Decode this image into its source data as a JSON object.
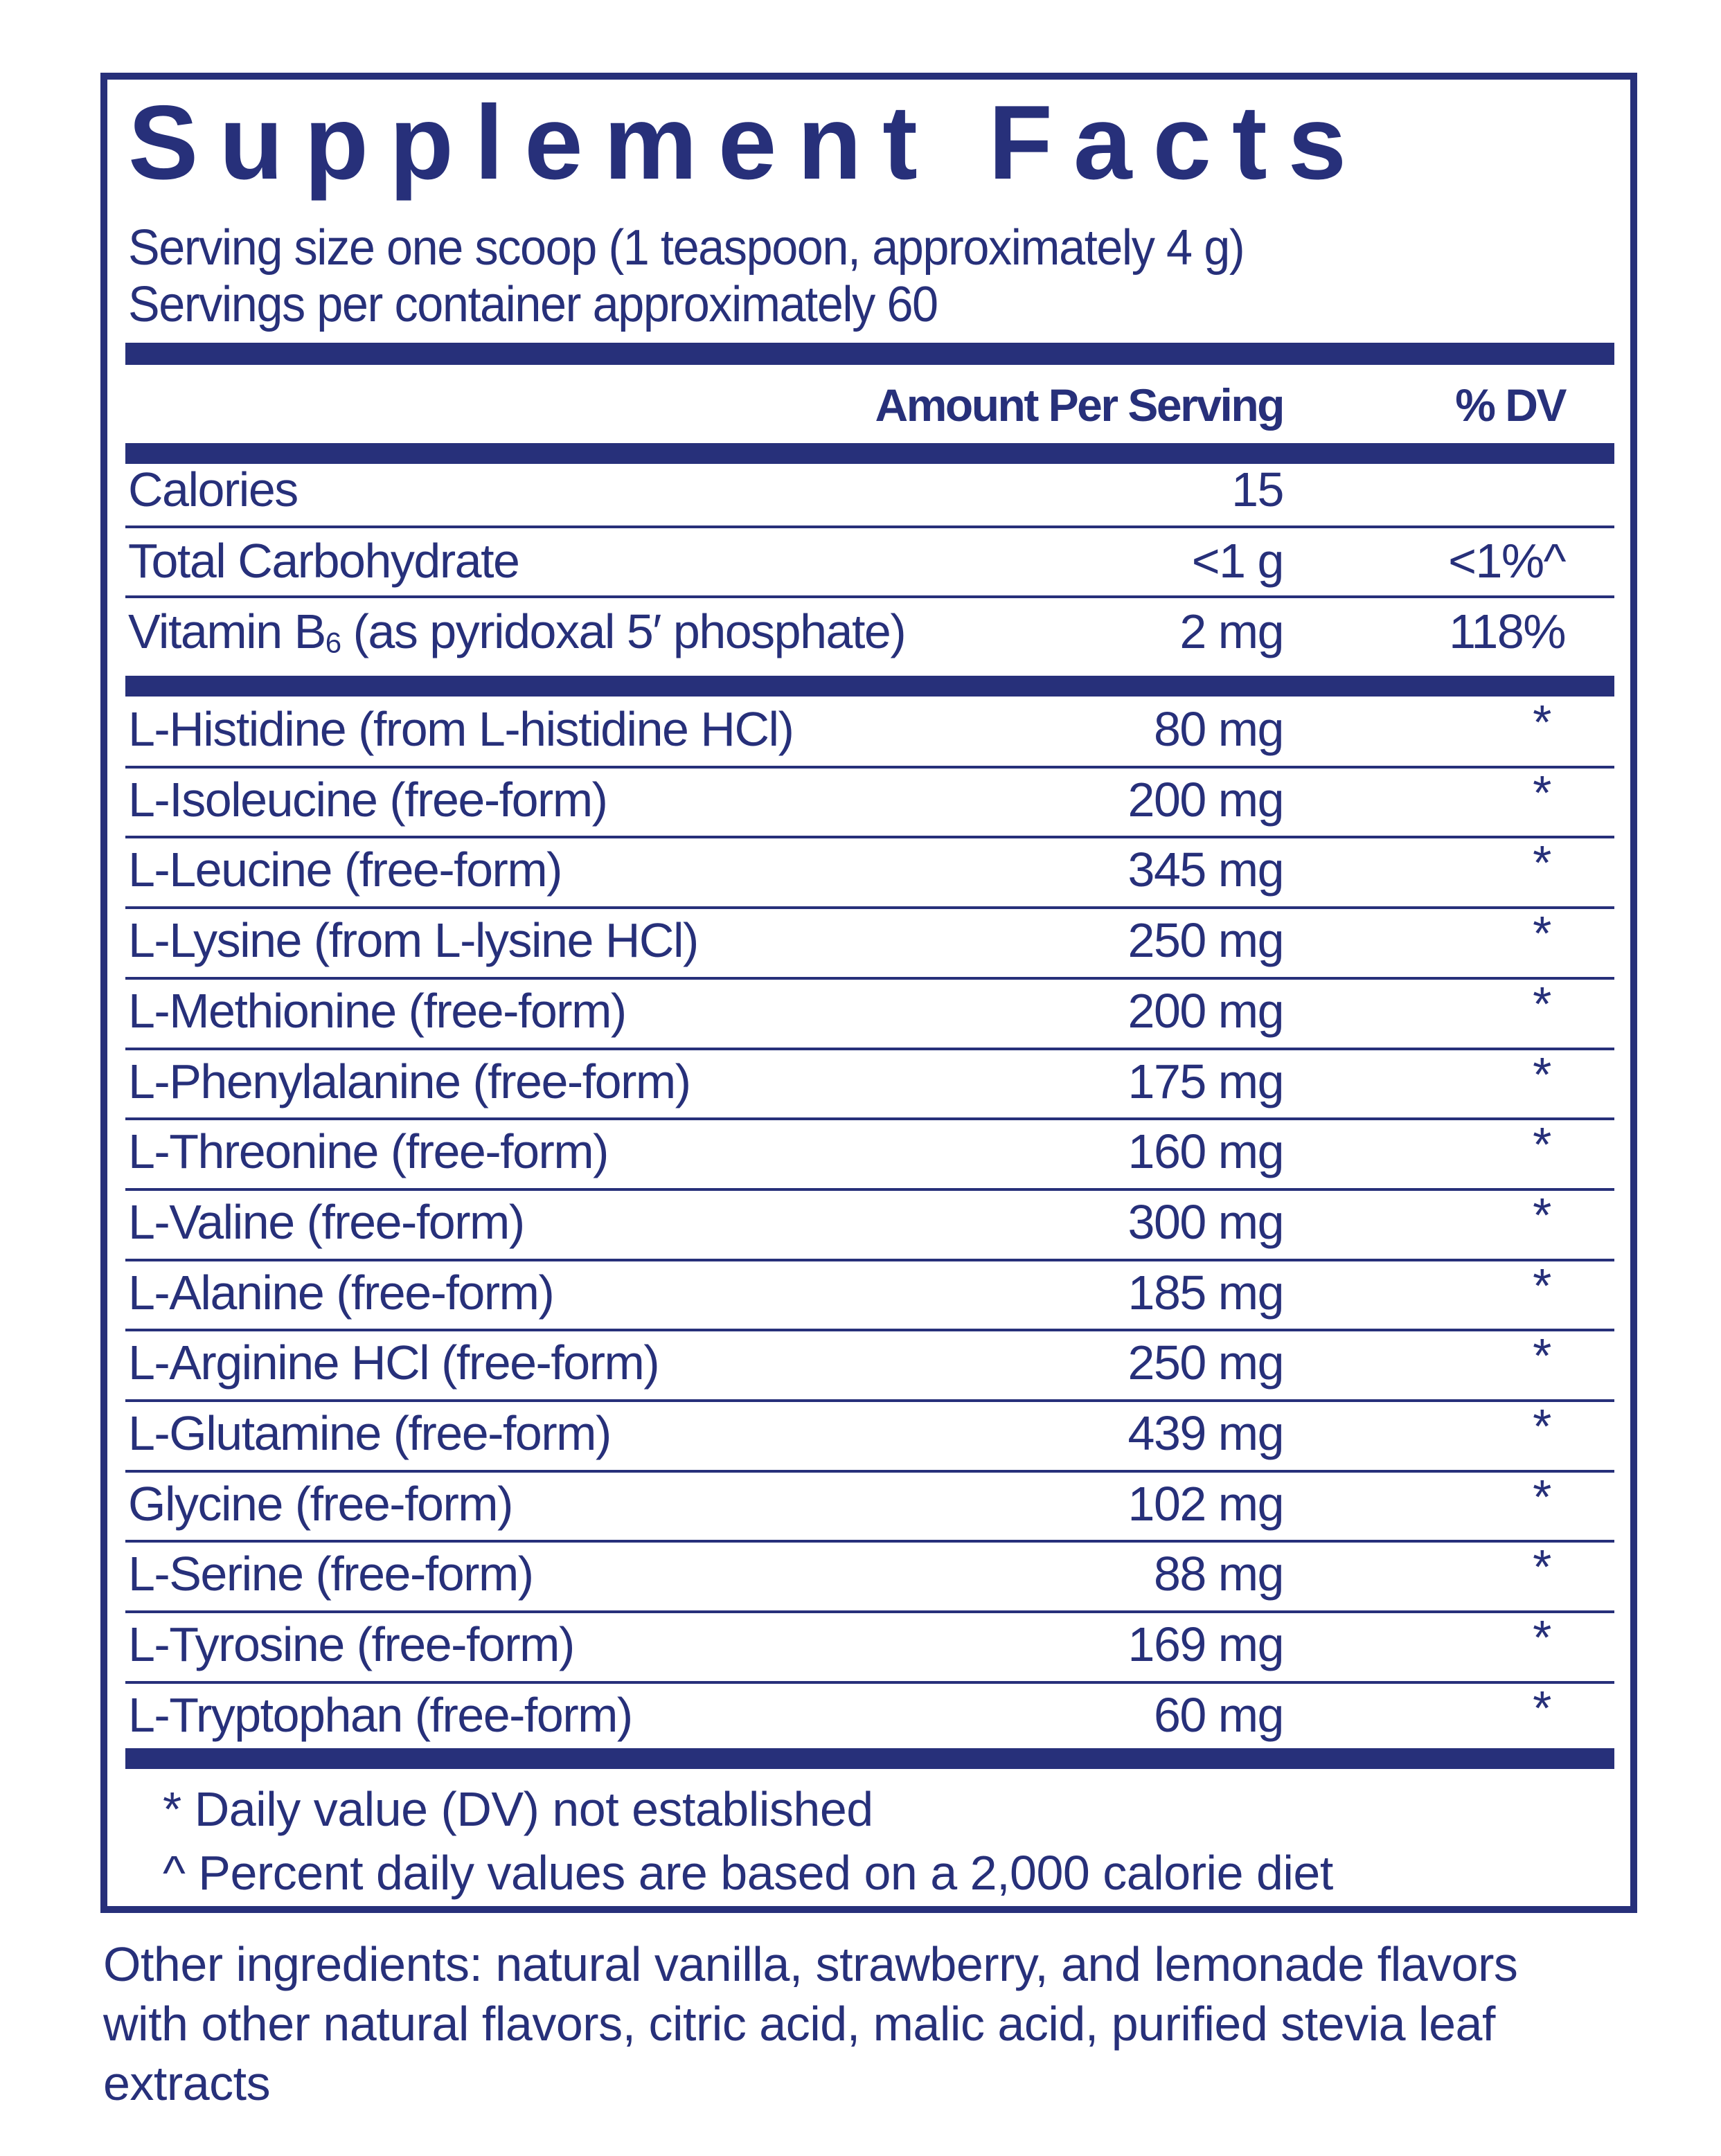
{
  "title": "Supplement Facts",
  "serving_size": "Serving size  one scoop (1 teaspoon, approximately 4 g)",
  "servings_per_container": "Servings per container  approximately 60",
  "header": {
    "amount": "Amount Per Serving",
    "dv": "% DV"
  },
  "top_rows": [
    {
      "name": "Calories",
      "amount": "15",
      "dv": ""
    },
    {
      "name": "Total Carbohydrate",
      "amount": "<1 g",
      "dv": "<1%^"
    },
    {
      "name": "Vitamin B",
      "sub": "6",
      "name_rest": " (as pyridoxal 5′ phosphate)",
      "amount": "2 mg",
      "dv": "118%"
    }
  ],
  "amino_rows": [
    {
      "name": "L-Histidine (from L-histidine HCl)",
      "amount": "80 mg",
      "dv": "*"
    },
    {
      "name": "L-Isoleucine (free-form)",
      "amount": "200 mg",
      "dv": "*"
    },
    {
      "name": "L-Leucine (free-form)",
      "amount": "345 mg",
      "dv": "*"
    },
    {
      "name": "L-Lysine (from L-lysine HCl)",
      "amount": "250 mg",
      "dv": "*"
    },
    {
      "name": "L-Methionine (free-form)",
      "amount": "200 mg",
      "dv": "*"
    },
    {
      "name": "L-Phenylalanine (free-form)",
      "amount": "175 mg",
      "dv": "*"
    },
    {
      "name": "L-Threonine (free-form)",
      "amount": "160 mg",
      "dv": "*"
    },
    {
      "name": "L-Valine (free-form)",
      "amount": "300 mg",
      "dv": "*"
    },
    {
      "name": "L-Alanine (free-form)",
      "amount": "185 mg",
      "dv": "*"
    },
    {
      "name": "L-Arginine HCl (free-form)",
      "amount": "250 mg",
      "dv": "*"
    },
    {
      "name": "L-Glutamine (free-form)",
      "amount": "439 mg",
      "dv": "*"
    },
    {
      "name": "Glycine (free-form)",
      "amount": "102 mg",
      "dv": "*"
    },
    {
      "name": "L-Serine (free-form)",
      "amount": "88 mg",
      "dv": "*"
    },
    {
      "name": "L-Tyrosine (free-form)",
      "amount": "169 mg",
      "dv": "*"
    },
    {
      "name": "L-Tryptophan (free-form)",
      "amount": "60 mg",
      "dv": "*"
    }
  ],
  "footnotes": [
    "* Daily value (DV) not established",
    "^ Percent daily values are based on a 2,000 calorie diet"
  ],
  "other_ingredients": [
    "Other ingredients: natural vanilla, strawberry, and lemonade flavors",
    "with other natural flavors, citric acid, malic acid, purified stevia leaf",
    "extracts"
  ],
  "colors": {
    "ink": "#27307a",
    "background": "#ffffff"
  }
}
